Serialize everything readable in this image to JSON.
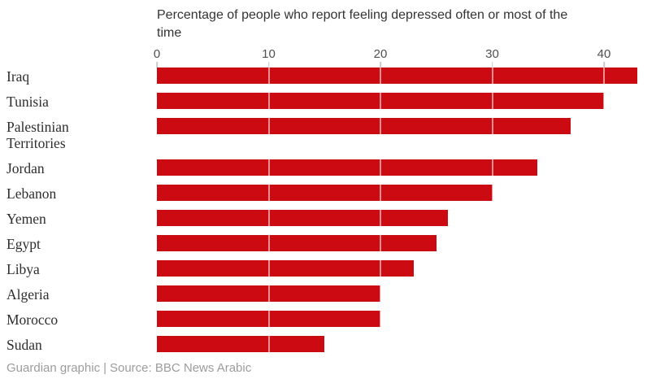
{
  "header": {
    "title_display": "Percentage of people who report feeling depressed often or most of the\ntime"
  },
  "footer": {
    "credit": "Guardian graphic",
    "separator": "|",
    "source": "Source: BBC News Arabic"
  },
  "colors": {
    "bar": "#cc0a11",
    "title_text": "#333333",
    "label_text": "#2e2e2e",
    "axis_text": "#4f4f4f",
    "tick": "#c9c9c9",
    "gridline_over_bar": "rgba(255,255,255,0.55)",
    "footer_text": "#9c9c9c"
  },
  "chart_data": {
    "type": "bar",
    "orientation": "horizontal",
    "title": "Percentage of people who report feeling depressed often or most of the time",
    "categories": [
      "Iraq",
      "Tunisia",
      "Palestinian Territories",
      "Jordan",
      "Lebanon",
      "Yemen",
      "Egypt",
      "Libya",
      "Algeria",
      "Morocco",
      "Sudan"
    ],
    "values": [
      43,
      40,
      37,
      34,
      30,
      26,
      25,
      23,
      20,
      20,
      15
    ],
    "xlabel": "",
    "ylabel": "",
    "xlim": [
      0,
      44
    ],
    "x_ticks": [
      0,
      10,
      20,
      30,
      40
    ],
    "legend": false,
    "grid": "vertical white lines drawn over bars at each x tick",
    "bar_color": "#cc0a11"
  }
}
